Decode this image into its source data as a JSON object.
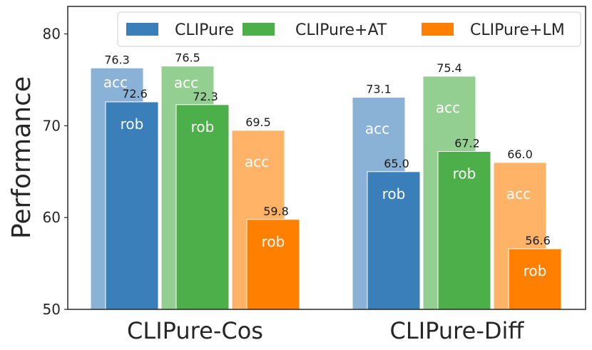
{
  "chart_data": {
    "type": "bar",
    "ylabel": "Performance",
    "xlabel": "",
    "ylim": [
      50,
      83
    ],
    "yticks": [
      50,
      60,
      70,
      80
    ],
    "categories": [
      "CLIPure-Cos",
      "CLIPure-Diff"
    ],
    "legend_position": "top-right",
    "grid": false,
    "series": [
      {
        "name": "CLIPure",
        "color": "#3a7fba",
        "acc": [
          76.3,
          73.1
        ],
        "rob": [
          72.6,
          65.0
        ],
        "acc_labels": [
          "76.3",
          "73.1"
        ],
        "rob_labels": [
          "72.6",
          "65.0"
        ]
      },
      {
        "name": "CLIPure+AT",
        "color": "#4caf4a",
        "acc": [
          76.5,
          75.4
        ],
        "rob": [
          72.3,
          67.2
        ],
        "acc_labels": [
          "76.5",
          "75.4"
        ],
        "rob_labels": [
          "72.3",
          "67.2"
        ]
      },
      {
        "name": "CLIPure+LM",
        "color": "#ff8000",
        "acc": [
          69.5,
          66.0
        ],
        "rob": [
          59.8,
          56.6
        ],
        "acc_labels": [
          "69.5",
          "66.0"
        ],
        "rob_labels": [
          "59.8",
          "56.6"
        ]
      }
    ],
    "bar_text": {
      "acc": "acc",
      "rob": "rob"
    }
  }
}
